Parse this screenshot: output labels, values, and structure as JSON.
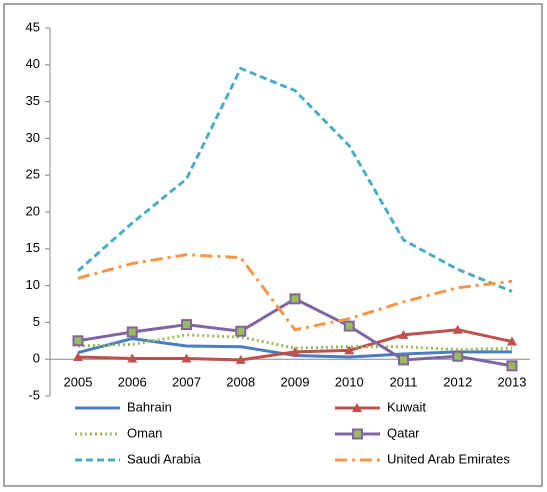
{
  "chart_data": {
    "type": "line",
    "categories": [
      "2005",
      "2006",
      "2007",
      "2008",
      "2009",
      "2010",
      "2011",
      "2012",
      "2013"
    ],
    "ylim": [
      -5,
      45
    ],
    "yticks": [
      -5,
      0,
      5,
      10,
      15,
      20,
      25,
      30,
      35,
      40,
      45
    ],
    "grid": false,
    "legend": "bottom",
    "series": [
      {
        "name": "Bahrain",
        "color": "#4a7dbf",
        "dash": "solid",
        "marker": "none",
        "values": [
          0.9,
          2.8,
          1.8,
          1.7,
          0.5,
          0.3,
          0.7,
          1.0,
          1.0
        ]
      },
      {
        "name": "Kuwait",
        "color": "#c0504d",
        "dash": "solid",
        "marker": "triangle",
        "values": [
          0.3,
          0.1,
          0.1,
          -0.1,
          1.0,
          1.2,
          3.3,
          4.0,
          2.4
        ]
      },
      {
        "name": "Oman",
        "color": "#9bbb59",
        "dash": "dot",
        "marker": "none",
        "values": [
          1.8,
          2.0,
          3.3,
          3.0,
          1.5,
          1.7,
          1.7,
          1.3,
          1.5
        ]
      },
      {
        "name": "Qatar",
        "color": "#8064a2",
        "dash": "solid",
        "marker": "square",
        "values": [
          2.5,
          3.7,
          4.7,
          3.8,
          8.2,
          4.5,
          -0.1,
          0.4,
          -0.9
        ]
      },
      {
        "name": "Saudi Arabia",
        "color": "#4bacc6",
        "dash": "dash",
        "marker": "none",
        "values": [
          12.0,
          18.5,
          24.5,
          39.5,
          36.5,
          29.0,
          16.2,
          12.2,
          9.2
        ]
      },
      {
        "name": "United Arab Emirates",
        "color": "#f79646",
        "dash": "dashdot",
        "marker": "none",
        "values": [
          11.0,
          13.0,
          14.2,
          13.8,
          4.0,
          5.5,
          7.8,
          9.7,
          10.6
        ]
      }
    ]
  }
}
